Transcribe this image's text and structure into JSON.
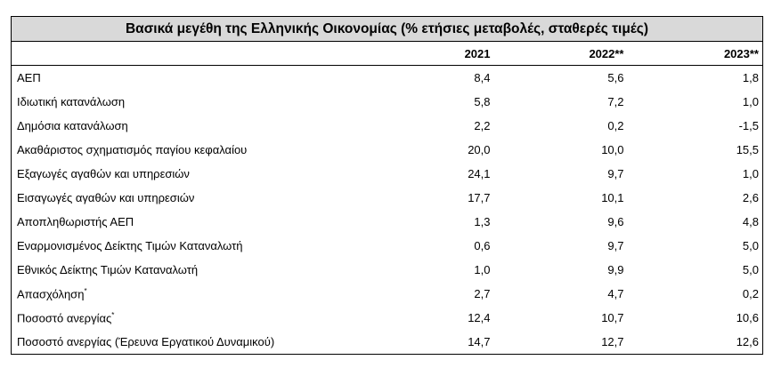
{
  "table": {
    "title": "Βασικά μεγέθη της Ελληνικής Οικονομίας (% ετήσιες μεταβολές, σταθερές τιμές)",
    "columns": [
      "2021",
      "2022**",
      "2023**"
    ],
    "rows": [
      {
        "label": "ΑΕΠ",
        "values": [
          "8,4",
          "5,6",
          "1,8"
        ]
      },
      {
        "label": "Ιδιωτική κατανάλωση",
        "values": [
          "5,8",
          "7,2",
          "1,0"
        ]
      },
      {
        "label": "Δημόσια κατανάλωση",
        "values": [
          "2,2",
          "0,2",
          "-1,5"
        ]
      },
      {
        "label": "Ακαθάριστος σχηματισμός παγίου κεφαλαίου",
        "values": [
          "20,0",
          "10,0",
          "15,5"
        ]
      },
      {
        "label": "Εξαγωγές αγαθών και υπηρεσιών",
        "values": [
          "24,1",
          "9,7",
          "1,0"
        ]
      },
      {
        "label": "Εισαγωγές αγαθών και υπηρεσιών",
        "values": [
          "17,7",
          "10,1",
          "2,6"
        ]
      },
      {
        "label": "Αποπληθωριστής ΑΕΠ",
        "values": [
          "1,3",
          "9,6",
          "4,8"
        ]
      },
      {
        "label": "Εναρμονισμένος Δείκτης Τιμών Καταναλωτή",
        "values": [
          "0,6",
          "9,7",
          "5,0"
        ]
      },
      {
        "label": "Εθνικός Δείκτης Τιμών Καταναλωτή",
        "values": [
          "1,0",
          "9,9",
          "5,0"
        ]
      },
      {
        "label": "Απασχόληση",
        "note": "*",
        "values": [
          "2,7",
          "4,7",
          "0,2"
        ]
      },
      {
        "label": "Ποσοστό ανεργίας",
        "note": "*",
        "values": [
          "12,4",
          "10,7",
          "10,6"
        ]
      },
      {
        "label": "Ποσοστό ανεργίας (Έρευνα Εργατικού Δυναμικού)",
        "values": [
          "14,7",
          "12,7",
          "12,6"
        ]
      }
    ]
  }
}
